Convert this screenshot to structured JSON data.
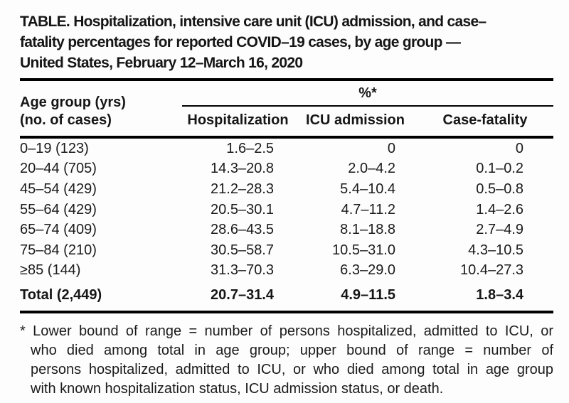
{
  "title": {
    "full": "TABLE. Hospitalization, intensive care unit (ICU) admission, and case–fatality percentages for reported COVID–19 cases, by age group — United States, February 12–March 16, 2020",
    "lines": [
      "TABLE. Hospitalization, intensive care unit (ICU) admission, and case–",
      "fatality percentages for reported COVID–19 cases, by age group —",
      "United States, February 12–March 16, 2020"
    ]
  },
  "table": {
    "stub_header": {
      "line1": "Age group (yrs)",
      "line2": "(no. of cases)"
    },
    "spanner_label": "%*",
    "columns": [
      "Hospitalization",
      "ICU admission",
      "Case-fatality"
    ],
    "rows": [
      {
        "age_group": "0–19 (123)",
        "hospitalization": "1.6–2.5",
        "icu_admission": "0",
        "case_fatality": "0"
      },
      {
        "age_group": "20–44 (705)",
        "hospitalization": "14.3–20.8",
        "icu_admission": "2.0–4.2",
        "case_fatality": "0.1–0.2"
      },
      {
        "age_group": "45–54 (429)",
        "hospitalization": "21.2–28.3",
        "icu_admission": "5.4–10.4",
        "case_fatality": "0.5–0.8"
      },
      {
        "age_group": "55–64 (429)",
        "hospitalization": "20.5–30.1",
        "icu_admission": "4.7–11.2",
        "case_fatality": "1.4–2.6"
      },
      {
        "age_group": "65–74 (409)",
        "hospitalization": "28.6–43.5",
        "icu_admission": "8.1–18.8",
        "case_fatality": "2.7–4.9"
      },
      {
        "age_group": "75–84 (210)",
        "hospitalization": "30.5–58.7",
        "icu_admission": "10.5–31.0",
        "case_fatality": "4.3–10.5"
      },
      {
        "age_group": "≥85 (144)",
        "hospitalization": "31.3–70.3",
        "icu_admission": "6.3–29.0",
        "case_fatality": "10.4–27.3"
      }
    ],
    "total": {
      "age_group": "Total (2,449)",
      "hospitalization": "20.7–31.4",
      "icu_admission": "4.9–11.5",
      "case_fatality": "1.8–3.4"
    }
  },
  "footnote": {
    "full": "* Lower bound of range = number of persons hospitalized, admitted to ICU, or who died among total in age group; upper bound of range = number of persons hospitalized, admitted to ICU, or who died among total in age group with known hospitalization status, ICU admission status, or death.",
    "lines": [
      "* Lower bound of range = number of persons hospitalized, admitted to ICU, or",
      "who died among total in age group; upper bound of range = number of",
      "persons hospitalized, admitted to ICU, or who died among total in age group",
      "with known hospitalization status, ICU admission status, or death."
    ]
  },
  "colors": {
    "background": "#fdfdfd",
    "text": "#1b1b1b",
    "rule": "#000000"
  }
}
